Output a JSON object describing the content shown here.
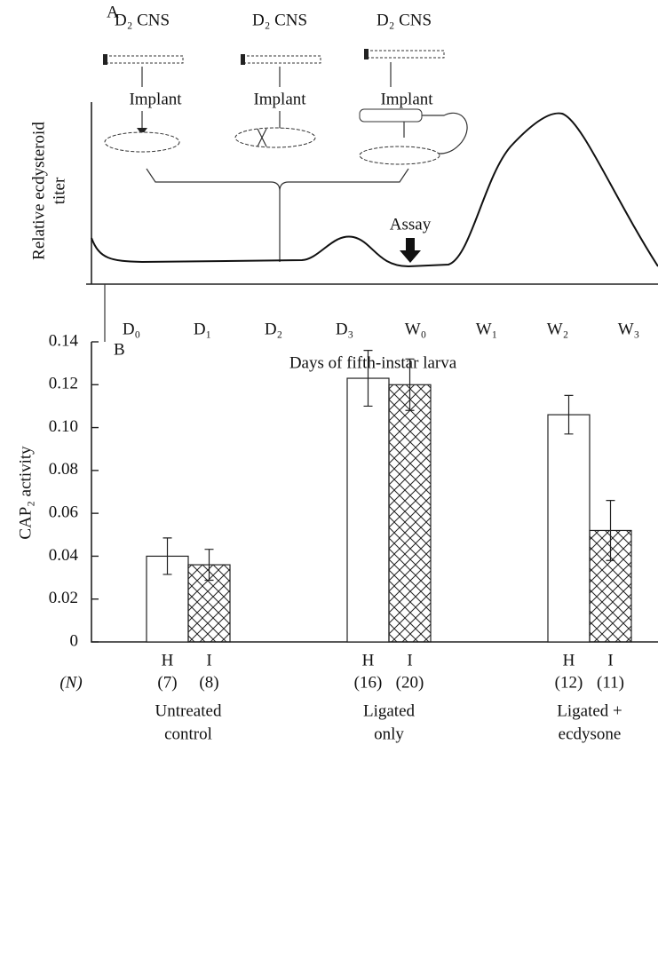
{
  "panel_a": {
    "label": "A",
    "implants": [
      {
        "organ": "D₂ CNS",
        "action": "Implant"
      },
      {
        "organ": "D₂ CNS",
        "action": "Implant"
      },
      {
        "organ": "D₂ CNS",
        "action": "Implant"
      }
    ],
    "assay": "Assay",
    "y_label": [
      "Relative ecdysteroid",
      "titer"
    ],
    "x_categories": [
      "D₀",
      "D₁",
      "D₂",
      "D₃",
      "W₀",
      "W₁",
      "W₂",
      "W₃"
    ],
    "x_label": "Days of fifth-instar larva"
  },
  "chart_data": {
    "type": "bar",
    "panel_label": "B",
    "y_label": "CAP₂ activity",
    "categories": [
      [
        "Untreated",
        "control"
      ],
      [
        "Ligated",
        "only"
      ],
      [
        "Ligated +",
        "ecdysone"
      ]
    ],
    "n_label": "(N)",
    "series": [
      {
        "name": "H",
        "fill": "white",
        "values": [
          0.04,
          0.123,
          0.106
        ],
        "errors": [
          0.0085,
          0.013,
          0.009
        ],
        "n_labels": [
          "(7)",
          "(16)",
          "(12)"
        ]
      },
      {
        "name": "I",
        "fill": "crosshatch",
        "values": [
          0.036,
          0.12,
          0.052
        ],
        "errors": [
          0.0072,
          0.012,
          0.014
        ],
        "n_labels": [
          "(8)",
          "(20)",
          "(11)"
        ]
      }
    ],
    "ylim": [
      0,
      0.14
    ],
    "yticks": [
      0,
      0.02,
      0.04,
      0.06,
      0.08,
      {
        "value": 0.1,
        "label": "0.10"
      },
      0.12,
      0.14
    ]
  }
}
